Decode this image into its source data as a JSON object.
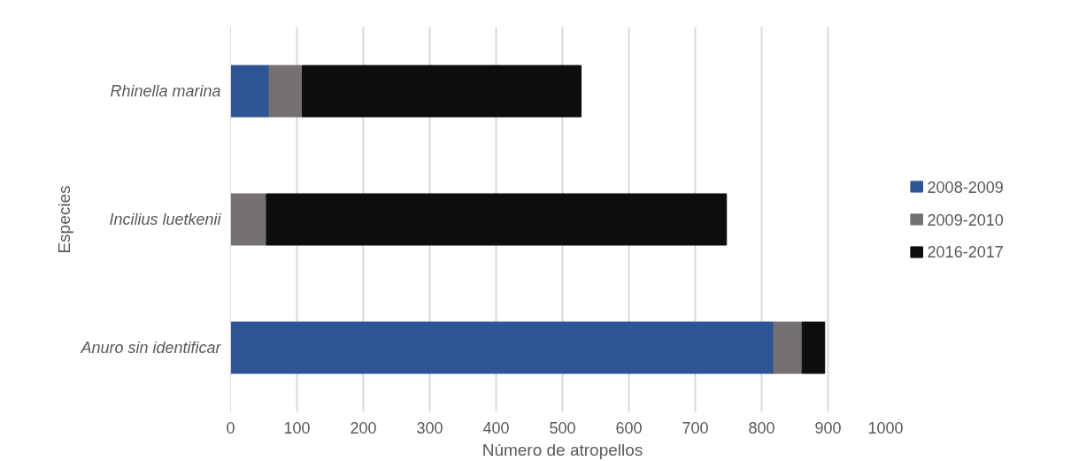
{
  "chart_data": {
    "type": "bar",
    "orientation": "horizontal",
    "stacked": true,
    "xlabel": "Número de atropellos",
    "ylabel": "Especies",
    "categories": [
      "Rhinella marina",
      "Incilius luetkenii",
      "Anuro sin identificar"
    ],
    "series": [
      {
        "name": "2008-2009",
        "color": "#2f5597",
        "values": [
          58,
          0,
          818
        ]
      },
      {
        "name": "2009-2010",
        "color": "#767171",
        "values": [
          50,
          54,
          43
        ]
      },
      {
        "name": "2016-2017",
        "color": "#0d0d0d",
        "values": [
          420,
          693,
          34
        ]
      }
    ],
    "xlim": [
      0,
      1000
    ],
    "xticks": [
      0,
      100,
      200,
      300,
      400,
      500,
      600,
      700,
      800,
      900,
      1000
    ],
    "grid": "x",
    "legend": "right"
  }
}
